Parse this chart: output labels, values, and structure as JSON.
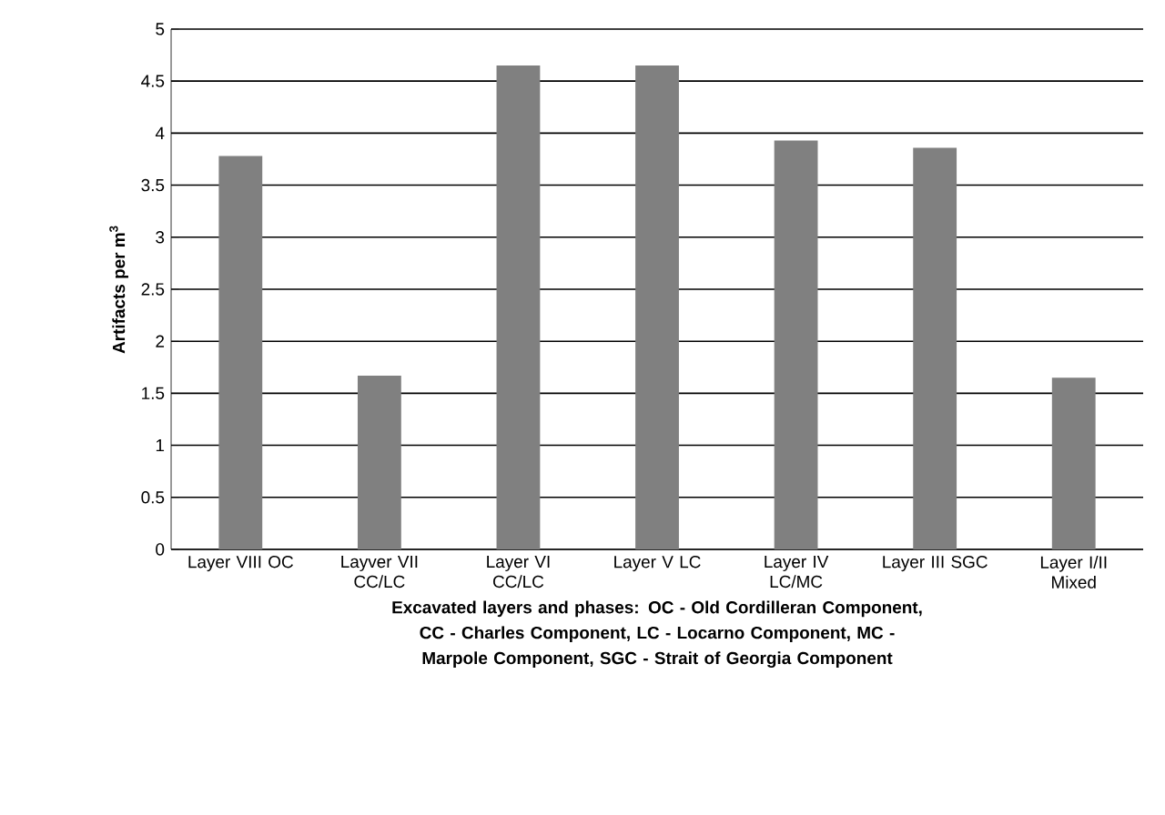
{
  "chart_data": {
    "type": "bar",
    "xlabel": "Excavated layers and phases: OC - Old Cordilleran Component, CC - Charles Component, LC - Locarno Component, MC - Marpole Component, SGC - Strait of Georgia Component",
    "ylabel": "Artifacts per m$^{3}$",
    "categories": [
      "Layer VIII OC",
      "Layver VII CC/LC",
      "Layer VI CC/LC",
      "Layer V LC",
      "Layer IV LC/MC",
      "Layer III SGC",
      "Layer I/II Mixed"
    ],
    "values": [
      3.78,
      1.67,
      4.65,
      4.65,
      3.93,
      3.86,
      1.65
    ],
    "color": "#808080",
    "ylim": [
      0,
      5
    ],
    "yticks": [
      0,
      0.5,
      1,
      1.5,
      2,
      2.5,
      3,
      3.5,
      4,
      4.5,
      5
    ],
    "grid": "y"
  }
}
